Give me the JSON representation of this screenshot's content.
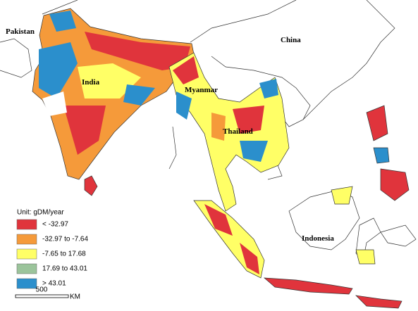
{
  "labels": [
    "Pakistan",
    "China",
    "India",
    "Myanmar",
    "Thailand",
    "Indonesia"
  ],
  "legend": {
    "title": "Unit: gDM/year",
    "items": [
      {
        "label": "< -32.97",
        "color": "#e0343c"
      },
      {
        "label": "-32.97 to -7.64",
        "color": "#f59a3a"
      },
      {
        "label": "-7.65 to 17.68",
        "color": "#ffff66"
      },
      {
        "label": "17.69 to 43.01",
        "color": "#9bc49b"
      },
      {
        "label": "> 43.01",
        "color": "#2b8fcc"
      }
    ]
  },
  "scale_bar": {
    "value": "500",
    "unit": "KM"
  }
}
